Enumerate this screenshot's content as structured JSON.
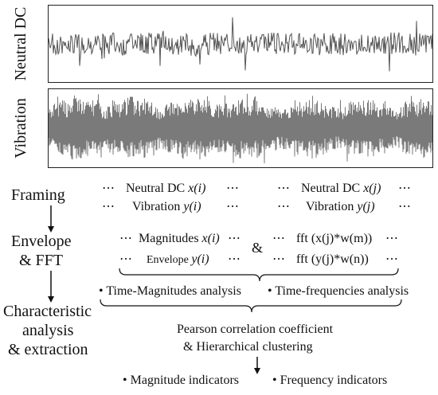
{
  "signals": {
    "neutral_dc_label": "Neutral DC",
    "vibration_label": "Vibration"
  },
  "stages": {
    "framing": "Framing",
    "envelope_line1": "Envelope",
    "envelope_line2": "& FFT",
    "char_line1": "Characteristic",
    "char_line2": "analysis",
    "char_line3": "& extraction"
  },
  "framing": {
    "ellipsis": "⋯",
    "left_dc": "Neutral DC",
    "left_dc_var": "x(i)",
    "left_vib": "Vibration",
    "left_vib_var": "y(i)",
    "right_dc": "Neutral DC",
    "right_dc_var": "x(j)",
    "right_vib": "Vibration",
    "right_vib_var": "y(j)"
  },
  "envelope": {
    "magnitudes": "Magnitudes",
    "magnitudes_var": "x(i)",
    "envelope": "Envelope",
    "envelope_var": "y(i)",
    "amp": "&",
    "fft1": "fft (x(j)*w(m))",
    "fft2": "fft (y(j)*w(n))"
  },
  "analysis": {
    "time_magnitudes": "Time-Magnitudes analysis",
    "time_frequencies": "Time-frequencies analysis",
    "pearson": "Pearson correlation coefficient",
    "clustering": "& Hierarchical clustering",
    "magnitude_indicators": "Magnitude indicators",
    "frequency_indicators": "Frequency indicators"
  }
}
